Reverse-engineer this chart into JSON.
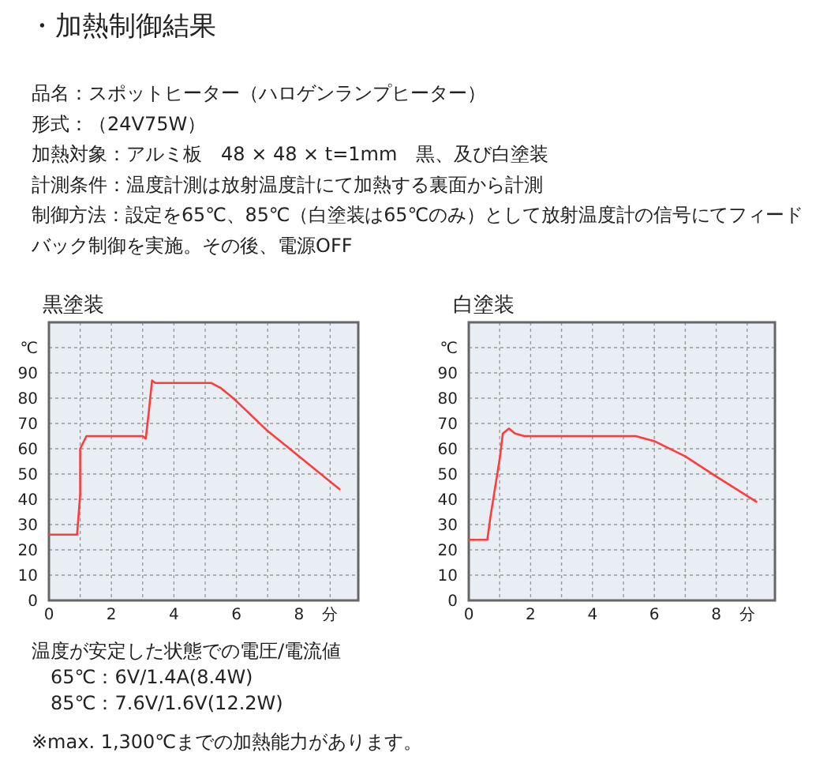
{
  "chart_data": [
    {
      "type": "other",
      "title": "・加熱制御結果",
      "annotations": [
        "品名：スポットヒーター（ハロゲンランプヒーター）",
        "形式：（24V75W）",
        "加熱対象：アルミ板　48 × 48 × t=1mm　黒、及び白塗装",
        "計測条件：温度計測は放射温度計にて加熱する裏面から計測",
        "制御方法：設定を65℃、85℃（白塗装は65℃のみ）として放射温度計の信号にてフィード",
        "バック制御を実施。その後、電源OFF"
      ]
    },
    {
      "type": "line",
      "title": "黒塗装",
      "color": "#ff3b3b",
      "grid": true,
      "xlim": [
        0,
        9.9
      ],
      "ylim": [
        0,
        110
      ],
      "xticks": [
        0,
        {
          "value": 1,
          "label": null
        },
        2,
        {
          "value": 3,
          "label": null
        },
        4,
        {
          "value": 5,
          "label": null
        },
        6,
        {
          "value": 7,
          "label": null
        },
        8,
        {
          "value": 9,
          "label": "分"
        }
      ],
      "yticks": [
        0,
        10,
        20,
        30,
        40,
        50,
        60,
        70,
        80,
        90,
        {
          "value": 100,
          "label": "℃"
        }
      ],
      "x": [
        0,
        0.9,
        1.0,
        1.0,
        1.2,
        1.4,
        3.0,
        3.1,
        3.2,
        3.3,
        3.4,
        5.2,
        5.5,
        5.9,
        7.0,
        8.0,
        9.3
      ],
      "values": [
        26,
        26,
        42,
        60,
        65,
        65,
        65,
        64,
        75,
        87,
        86,
        86,
        84,
        80,
        67,
        57,
        44
      ]
    },
    {
      "type": "line",
      "title": "白塗装",
      "color": "#ff3b3b",
      "grid": true,
      "xlim": [
        0,
        9.9
      ],
      "ylim": [
        0,
        110
      ],
      "xticks": [
        0,
        {
          "value": 1,
          "label": null
        },
        2,
        {
          "value": 3,
          "label": null
        },
        4,
        {
          "value": 5,
          "label": null
        },
        6,
        {
          "value": 7,
          "label": null
        },
        8,
        {
          "value": 9,
          "label": "分"
        }
      ],
      "yticks": [
        0,
        10,
        20,
        30,
        40,
        50,
        60,
        70,
        80,
        90,
        {
          "value": 100,
          "label": "℃"
        }
      ],
      "x": [
        0,
        0.6,
        0.7,
        1.0,
        1.1,
        1.3,
        1.5,
        1.8,
        5.4,
        6.0,
        7.0,
        8.0,
        9.3
      ],
      "values": [
        24,
        24,
        33,
        56,
        66,
        68,
        66,
        65,
        65,
        63,
        57,
        49,
        39
      ]
    },
    {
      "type": "other",
      "annotations": [
        "温度が安定した状態での電圧/電流値",
        "　65℃：6V/1.4A(8.4W)",
        "　85℃：7.6V/1.6V(12.2W)",
        "※max. 1,300℃までの加熱能力があります。"
      ]
    }
  ]
}
